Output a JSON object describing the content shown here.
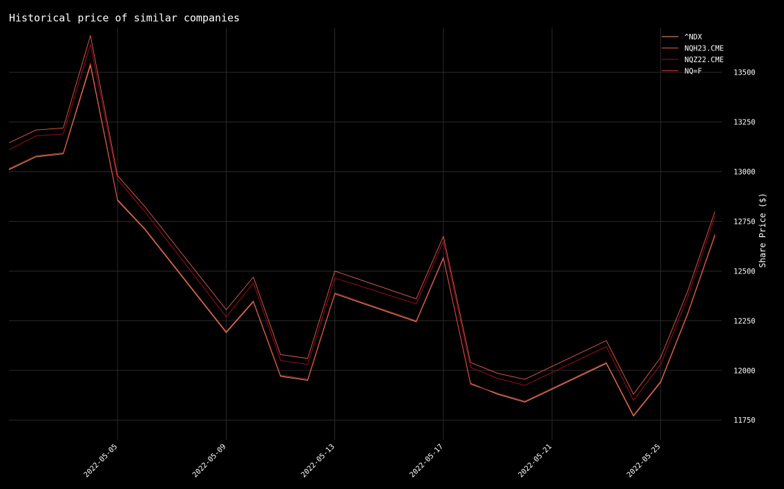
{
  "chart_data": {
    "type": "line",
    "title": "Historical price of similar companies",
    "xlabel": "",
    "ylabel": "Share Price ($)",
    "ylim": [
      11650,
      13725
    ],
    "xlim": [
      "2022-05-01",
      "2022-05-27"
    ],
    "y_ticks": [
      11750,
      12000,
      12250,
      12500,
      12750,
      13000,
      13250,
      13500
    ],
    "x_ticks": [
      "2022-05-05",
      "2022-05-09",
      "2022-05-13",
      "2022-05-17",
      "2022-05-21",
      "2022-05-25"
    ],
    "y_axis_side": "right",
    "grid": true,
    "legend_position": "top-right",
    "x": [
      "2022-05-01",
      "2022-05-02",
      "2022-05-03",
      "2022-05-04",
      "2022-05-05",
      "2022-05-06",
      "2022-05-09",
      "2022-05-10",
      "2022-05-11",
      "2022-05-12",
      "2022-05-13",
      "2022-05-16",
      "2022-05-17",
      "2022-05-18",
      "2022-05-19",
      "2022-05-20",
      "2022-05-23",
      "2022-05-24",
      "2022-05-25",
      "2022-05-26",
      "2022-05-27"
    ],
    "series": [
      {
        "name": "^NDX",
        "color": "#f4a460",
        "values": [
          13010,
          13075,
          13090,
          13535,
          12855,
          12710,
          12190,
          12345,
          11970,
          11950,
          12385,
          12245,
          12565,
          11935,
          11880,
          11840,
          12035,
          11770,
          11940,
          12285,
          12680
        ]
      },
      {
        "name": "NQH23.CME",
        "color": "#e9604a",
        "values": [
          13145,
          13210,
          13220,
          13685,
          12980,
          12825,
          12305,
          12470,
          12080,
          12060,
          12500,
          12360,
          12675,
          12040,
          11985,
          11955,
          12150,
          11880,
          12065,
          12400,
          12800
        ]
      },
      {
        "name": "NQZ22.CME",
        "color": "#b00a22",
        "values": [
          13110,
          13180,
          13190,
          13640,
          12960,
          12800,
          12270,
          12440,
          12050,
          12030,
          12465,
          12335,
          12650,
          12015,
          11960,
          11925,
          12120,
          11850,
          12030,
          12370,
          12775
        ]
      },
      {
        "name": "NQ=F",
        "color": "#dd3a3a",
        "values": [
          13015,
          13080,
          13095,
          13545,
          12860,
          12715,
          12195,
          12350,
          11975,
          11955,
          12390,
          12250,
          12570,
          11930,
          11885,
          11845,
          12040,
          11775,
          11945,
          12290,
          12685
        ]
      }
    ]
  }
}
